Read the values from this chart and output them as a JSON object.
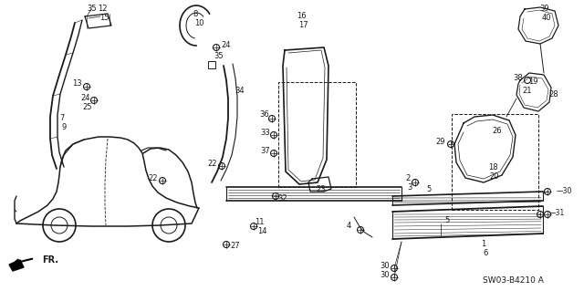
{
  "bg_color": "#ffffff",
  "line_color": "#1a1a1a",
  "diagram_code": "SW03-B4210 A",
  "figsize": [
    6.4,
    3.19
  ],
  "dpi": 100
}
